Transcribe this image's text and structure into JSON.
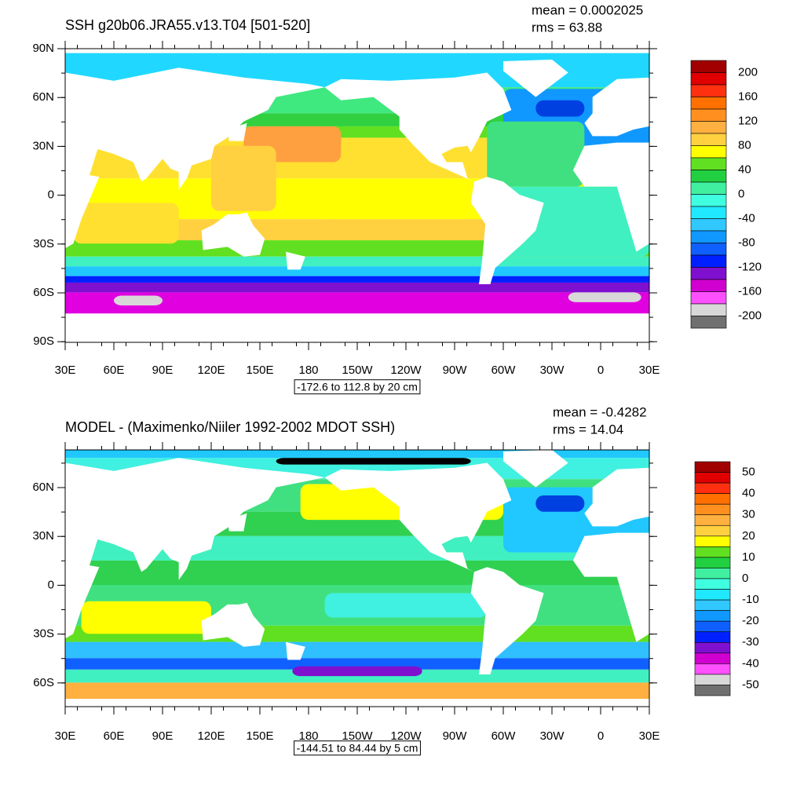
{
  "panels": [
    {
      "title": "SSH g20b06.JRA55.v13.T04 [501-520]",
      "mean": "mean = 0.0002025",
      "rms": "rms = 63.88",
      "lat_labels": [
        "90N",
        "60N",
        "30N",
        "0",
        "30S",
        "60S",
        "90S"
      ],
      "lon_labels": [
        "30E",
        "60E",
        "90E",
        "120E",
        "150E",
        "180",
        "150W",
        "120W",
        "90W",
        "60W",
        "30W",
        "0",
        "30E"
      ],
      "contour_info": "-172.6 to 112.8 by 20 cm",
      "colorbar_labels": [
        "200",
        "160",
        "120",
        "80",
        "40",
        "0",
        "-40",
        "-80",
        "-120",
        "-160",
        "-200"
      ],
      "colorbar_colors": [
        "#a00000",
        "#e00000",
        "#ff3010",
        "#ff7000",
        "#ff9020",
        "#ffb040",
        "#ffd040",
        "#ffff00",
        "#60e020",
        "#20d040",
        "#40f0a0",
        "#40ffe0",
        "#20e8ff",
        "#30c8ff",
        "#1098ff",
        "#1060ff",
        "#0020ff",
        "#8010d0",
        "#d000d0",
        "#ff50ff",
        "#d8d8d8",
        "#707070"
      ]
    },
    {
      "title": "MODEL - (Maximenko/Niiler 1992-2002 MDOT SSH)",
      "mean": "mean = -0.4282",
      "rms": "rms = 14.04",
      "lat_labels": [
        "60N",
        "30N",
        "0",
        "30S",
        "60S"
      ],
      "lon_labels": [
        "30E",
        "60E",
        "90E",
        "120E",
        "150E",
        "180",
        "150W",
        "120W",
        "90W",
        "60W",
        "30W",
        "0",
        "30E"
      ],
      "contour_info": "-144.51 to 84.44 by 5 cm",
      "colorbar_labels": [
        "50",
        "40",
        "30",
        "20",
        "10",
        "0",
        "-10",
        "-20",
        "-30",
        "-40",
        "-50"
      ],
      "colorbar_colors": [
        "#a00000",
        "#e00000",
        "#ff3010",
        "#ff7000",
        "#ff9020",
        "#ffb040",
        "#ffd040",
        "#ffff00",
        "#60e020",
        "#20d040",
        "#40f0a0",
        "#40ffe0",
        "#20e8ff",
        "#30c8ff",
        "#1098ff",
        "#1060ff",
        "#0020ff",
        "#8010d0",
        "#d000d0",
        "#ff50ff",
        "#d8d8d8",
        "#707070"
      ]
    }
  ]
}
